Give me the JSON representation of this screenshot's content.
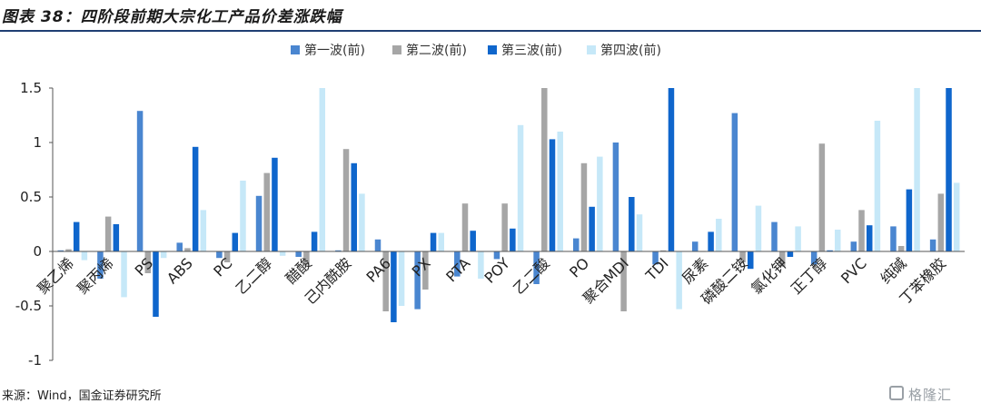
{
  "header": {
    "title": "图表 38：四阶段前期大宗化工产品价差涨跌幅"
  },
  "footer": {
    "source": "来源：Wind，国金证券研究所"
  },
  "watermark": {
    "text": "格隆汇"
  },
  "chart_data": {
    "type": "bar",
    "title": "",
    "xlabel": "",
    "ylabel": "",
    "ylim": [
      -1,
      1.5
    ],
    "yticks": [
      1.5,
      1,
      0.5,
      0,
      -0.5,
      -1
    ],
    "ytick_labels": [
      "1.5",
      "1",
      "0.5",
      "0",
      "-0.5",
      "-1"
    ],
    "grid": false,
    "legend_position": "top-center",
    "categories": [
      "聚乙烯",
      "聚丙烯",
      "PS",
      "ABS",
      "PC",
      "乙二醇",
      "醋酸",
      "己内酰胺",
      "PA6",
      "PX",
      "PTA",
      "POY",
      "乙二酸",
      "PO",
      "聚合MDI",
      "TDI",
      "尿素",
      "磷酸二铵",
      "氯化钾",
      "正丁醇",
      "PVC",
      "纯碱",
      "丁苯橡胶"
    ],
    "series": [
      {
        "name": "第一波(前)",
        "color": "#4a86d0",
        "values": [
          0.01,
          -0.25,
          1.29,
          0.08,
          -0.06,
          0.51,
          -0.05,
          0.01,
          0.11,
          -0.53,
          -0.23,
          -0.07,
          -0.3,
          0.12,
          1.0,
          -0.12,
          0.09,
          1.27,
          0.27,
          -0.12,
          0.09,
          0.23,
          0.11
        ]
      },
      {
        "name": "第二波(前)",
        "color": "#a6a6a6",
        "values": [
          0.02,
          0.32,
          -0.2,
          0.03,
          -0.1,
          0.72,
          -0.12,
          0.94,
          -0.55,
          -0.35,
          0.44,
          0.44,
          1.5,
          0.81,
          -0.55,
          0.01,
          0.0,
          -0.1,
          -0.14,
          0.99,
          0.38,
          0.05,
          0.53
        ]
      },
      {
        "name": "第三波(前)",
        "color": "#0f66cc",
        "values": [
          0.27,
          0.25,
          -0.6,
          0.96,
          0.17,
          0.86,
          0.18,
          0.81,
          -0.65,
          0.17,
          0.19,
          0.21,
          1.03,
          0.41,
          0.5,
          1.5,
          0.18,
          -0.16,
          -0.05,
          0.01,
          0.24,
          0.57,
          1.5
        ]
      },
      {
        "name": "第四波(前)",
        "color": "#c6e8f8",
        "values": [
          -0.08,
          -0.42,
          -0.06,
          0.38,
          0.65,
          -0.04,
          1.5,
          0.53,
          -0.5,
          0.17,
          -0.25,
          1.16,
          1.1,
          0.87,
          0.34,
          -0.53,
          0.3,
          0.42,
          0.23,
          0.2,
          1.2,
          1.5,
          0.63
        ]
      }
    ]
  }
}
